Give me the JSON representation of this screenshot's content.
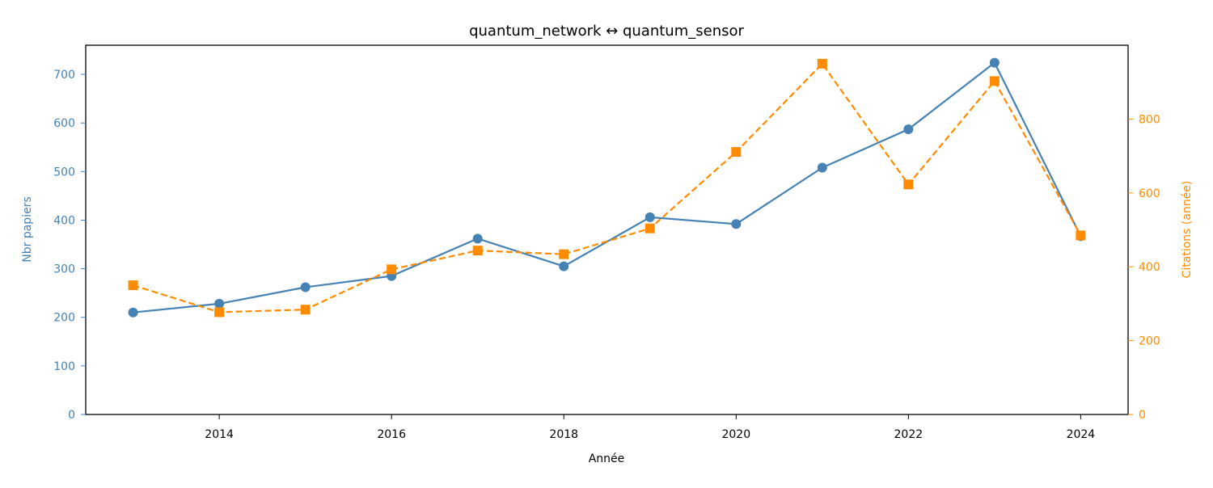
{
  "chart_data": {
    "type": "line",
    "title": "quantum_network  ↔  quantum_sensor",
    "xlabel": "Année",
    "ylabel_left": "Nbr papiers",
    "ylabel_right": "Citations (année)",
    "x": [
      2013,
      2014,
      2015,
      2016,
      2017,
      2018,
      2019,
      2020,
      2021,
      2022,
      2023,
      2024
    ],
    "xlim": [
      2012.45,
      2024.55
    ],
    "xticks": [
      "2014",
      "2016",
      "2018",
      "2020",
      "2022",
      "2024"
    ],
    "ylim_left": [
      0,
      760
    ],
    "yticks_left": [
      "0",
      "100",
      "200",
      "300",
      "400",
      "500",
      "600",
      "700"
    ],
    "ylim_right": [
      0,
      1000
    ],
    "yticks_right": [
      "0",
      "200",
      "400",
      "600",
      "800"
    ],
    "grid": false,
    "legend": "none",
    "series": [
      {
        "axis": "left",
        "values": [
          210,
          228,
          262,
          285,
          362,
          305,
          406,
          392,
          508,
          587,
          724,
          367
        ],
        "color": "#4682b4",
        "line_style": "solid",
        "marker": "circle"
      },
      {
        "axis": "right",
        "values": [
          350,
          277,
          284,
          393,
          444,
          434,
          504,
          711,
          950,
          623,
          903,
          485
        ],
        "color": "#ff8c00",
        "line_style": "dashed",
        "marker": "square"
      }
    ]
  }
}
